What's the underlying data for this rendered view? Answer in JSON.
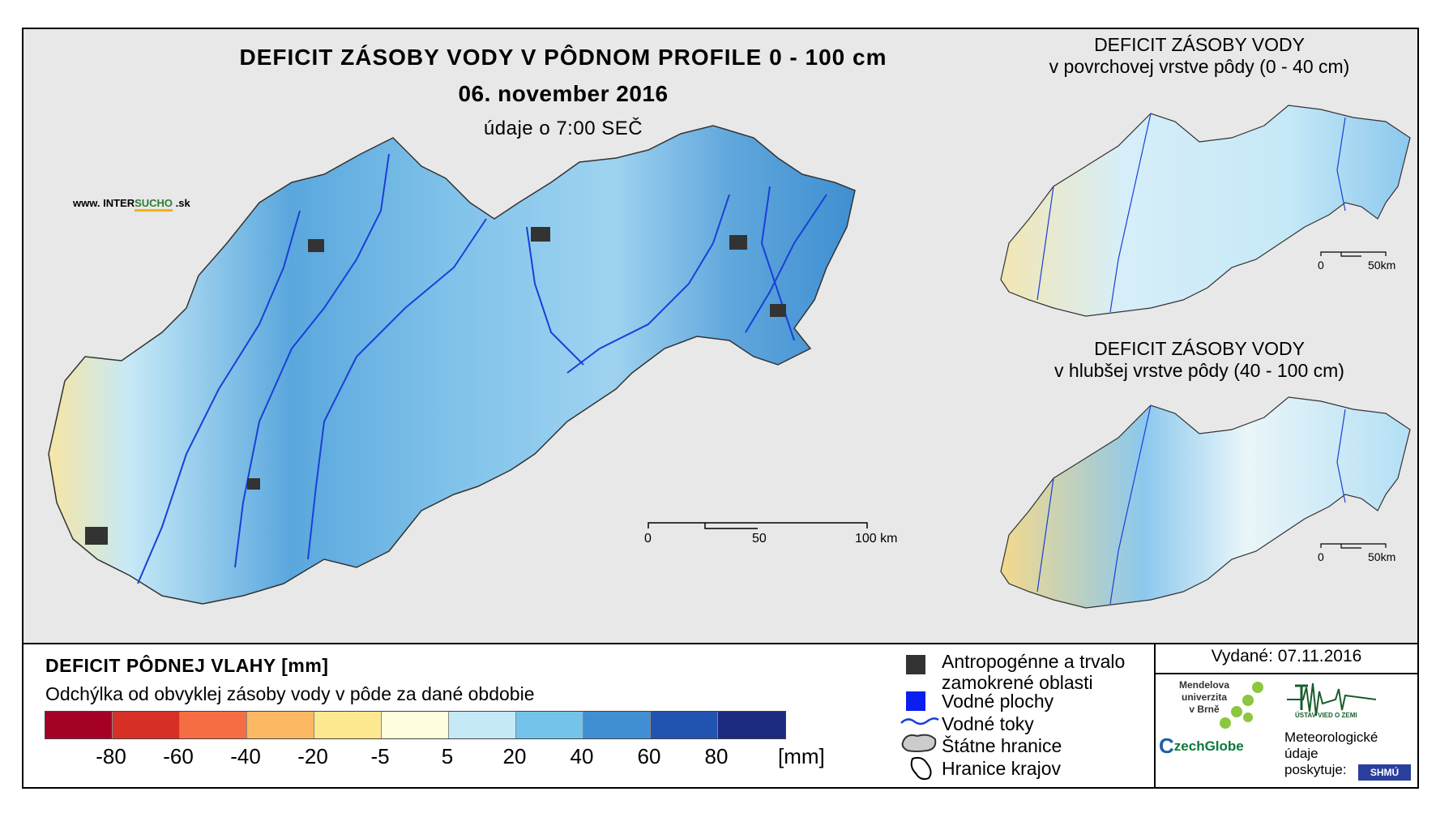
{
  "main": {
    "title": "DEFICIT ZÁSOBY VODY V PÔDNOM PROFILE 0 - 100 cm",
    "date": "06. november 2016",
    "time_note": "údaje o 7:00 SEČ",
    "scale": [
      "0",
      "50",
      "100 km"
    ]
  },
  "brand": {
    "prefix": "www. INTER",
    "accent": "SUCHO",
    "suffix": " .sk"
  },
  "inset_top": {
    "title_line1": "DEFICIT ZÁSOBY VODY",
    "title_line2": "v povrchovej vrstve pôdy (0 - 40 cm)",
    "scale": [
      "0",
      "50km"
    ]
  },
  "inset_bottom": {
    "title_line1": "DEFICIT ZÁSOBY VODY",
    "title_line2": "v hlubšej vrstve pôdy (40 - 100 cm)",
    "scale": [
      "0",
      "50km"
    ]
  },
  "legend": {
    "title": "DEFICIT PÔDNEJ VLAHY [mm]",
    "subtitle": "Odchýlka od obvyklej zásoby vody v pôde za dané obdobie",
    "unit": "[mm]",
    "tick_labels": [
      "-80",
      "-60",
      "-40",
      "-20",
      "-5",
      "5",
      "20",
      "40",
      "60",
      "80"
    ],
    "colors": [
      "#a50026",
      "#d73027",
      "#f46d43",
      "#fdb863",
      "#fee890",
      "#ffffe0",
      "#c6e9f7",
      "#74c3ea",
      "#3f8fd2",
      "#2154b0",
      "#1c2a80"
    ]
  },
  "map_key": {
    "anthro_line1": "Antropogénne a trvalo",
    "anthro_line2": "zamokrené oblasti",
    "water_areas": "Vodné plochy",
    "rivers": "Vodné toky",
    "state_border": "Štátne hranice",
    "region_border": "Hranice krajov"
  },
  "credits": {
    "issued": "Vydané: 07.11.2016",
    "mendel_line1": "Mendelova",
    "mendel_line2": "univerzita",
    "mendel_line3": "v Brně",
    "czechglobe_c": "C",
    "czechglobe_rest": "zechGlobe",
    "uvz": "ÚSTAV VIED O ZEMI",
    "meteo_line1": "Meteorologické",
    "meteo_line2": "údaje",
    "meteo_line3": "poskytuje:",
    "shmu": "SHMÚ"
  }
}
